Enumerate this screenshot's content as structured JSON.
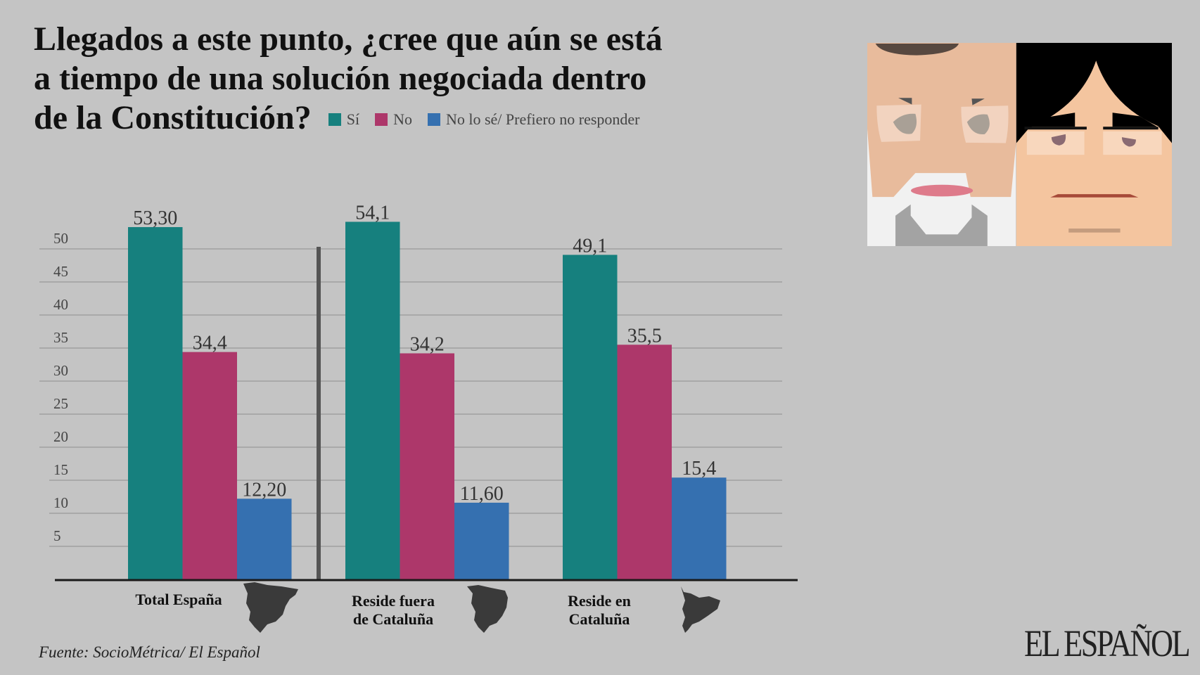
{
  "title": {
    "lines": [
      "Llegados a este punto, ¿cree que aún se está",
      "a tiempo de una solución negociada dentro",
      "de la Constitución?"
    ]
  },
  "chart_data": {
    "type": "bar",
    "title": "Llegados a este punto, ¿cree que aún se está a tiempo de una solución negociada dentro de la Constitución?",
    "categories": [
      "Total España",
      "Reside fuera de Cataluña",
      "Reside en Cataluña"
    ],
    "category_lines": [
      [
        "Total España"
      ],
      [
        "Reside fuera",
        "de Cataluña"
      ],
      [
        "Reside en",
        "Cataluña"
      ]
    ],
    "series": [
      {
        "name": "Sí",
        "color": "#16807e",
        "values": [
          53.3,
          54.1,
          49.1
        ],
        "labels": [
          "53,30",
          "54,1",
          "49,1"
        ]
      },
      {
        "name": "No",
        "color": "#ad376a",
        "values": [
          34.4,
          34.2,
          35.5
        ],
        "labels": [
          "34,4",
          "34,2",
          "35,5"
        ]
      },
      {
        "name": "No lo sé/ Prefiero no responder",
        "color": "#3570b0",
        "values": [
          12.2,
          11.6,
          15.4
        ],
        "labels": [
          "12,20",
          "11,60",
          "15,4"
        ]
      }
    ],
    "yticks": [
      5,
      10,
      15,
      20,
      25,
      30,
      35,
      40,
      45,
      50
    ],
    "ylim": [
      0,
      55
    ],
    "grid": true,
    "legend": "top",
    "xlabel": "",
    "ylabel": ""
  },
  "source": "Fuente: SocioMétrica/ El Español",
  "logo": "EL ESPAÑOL",
  "icons": [
    "spain-map-icon",
    "spain-outside-catalonia-map-icon",
    "catalonia-map-icon"
  ],
  "background": "#c4c4c4"
}
